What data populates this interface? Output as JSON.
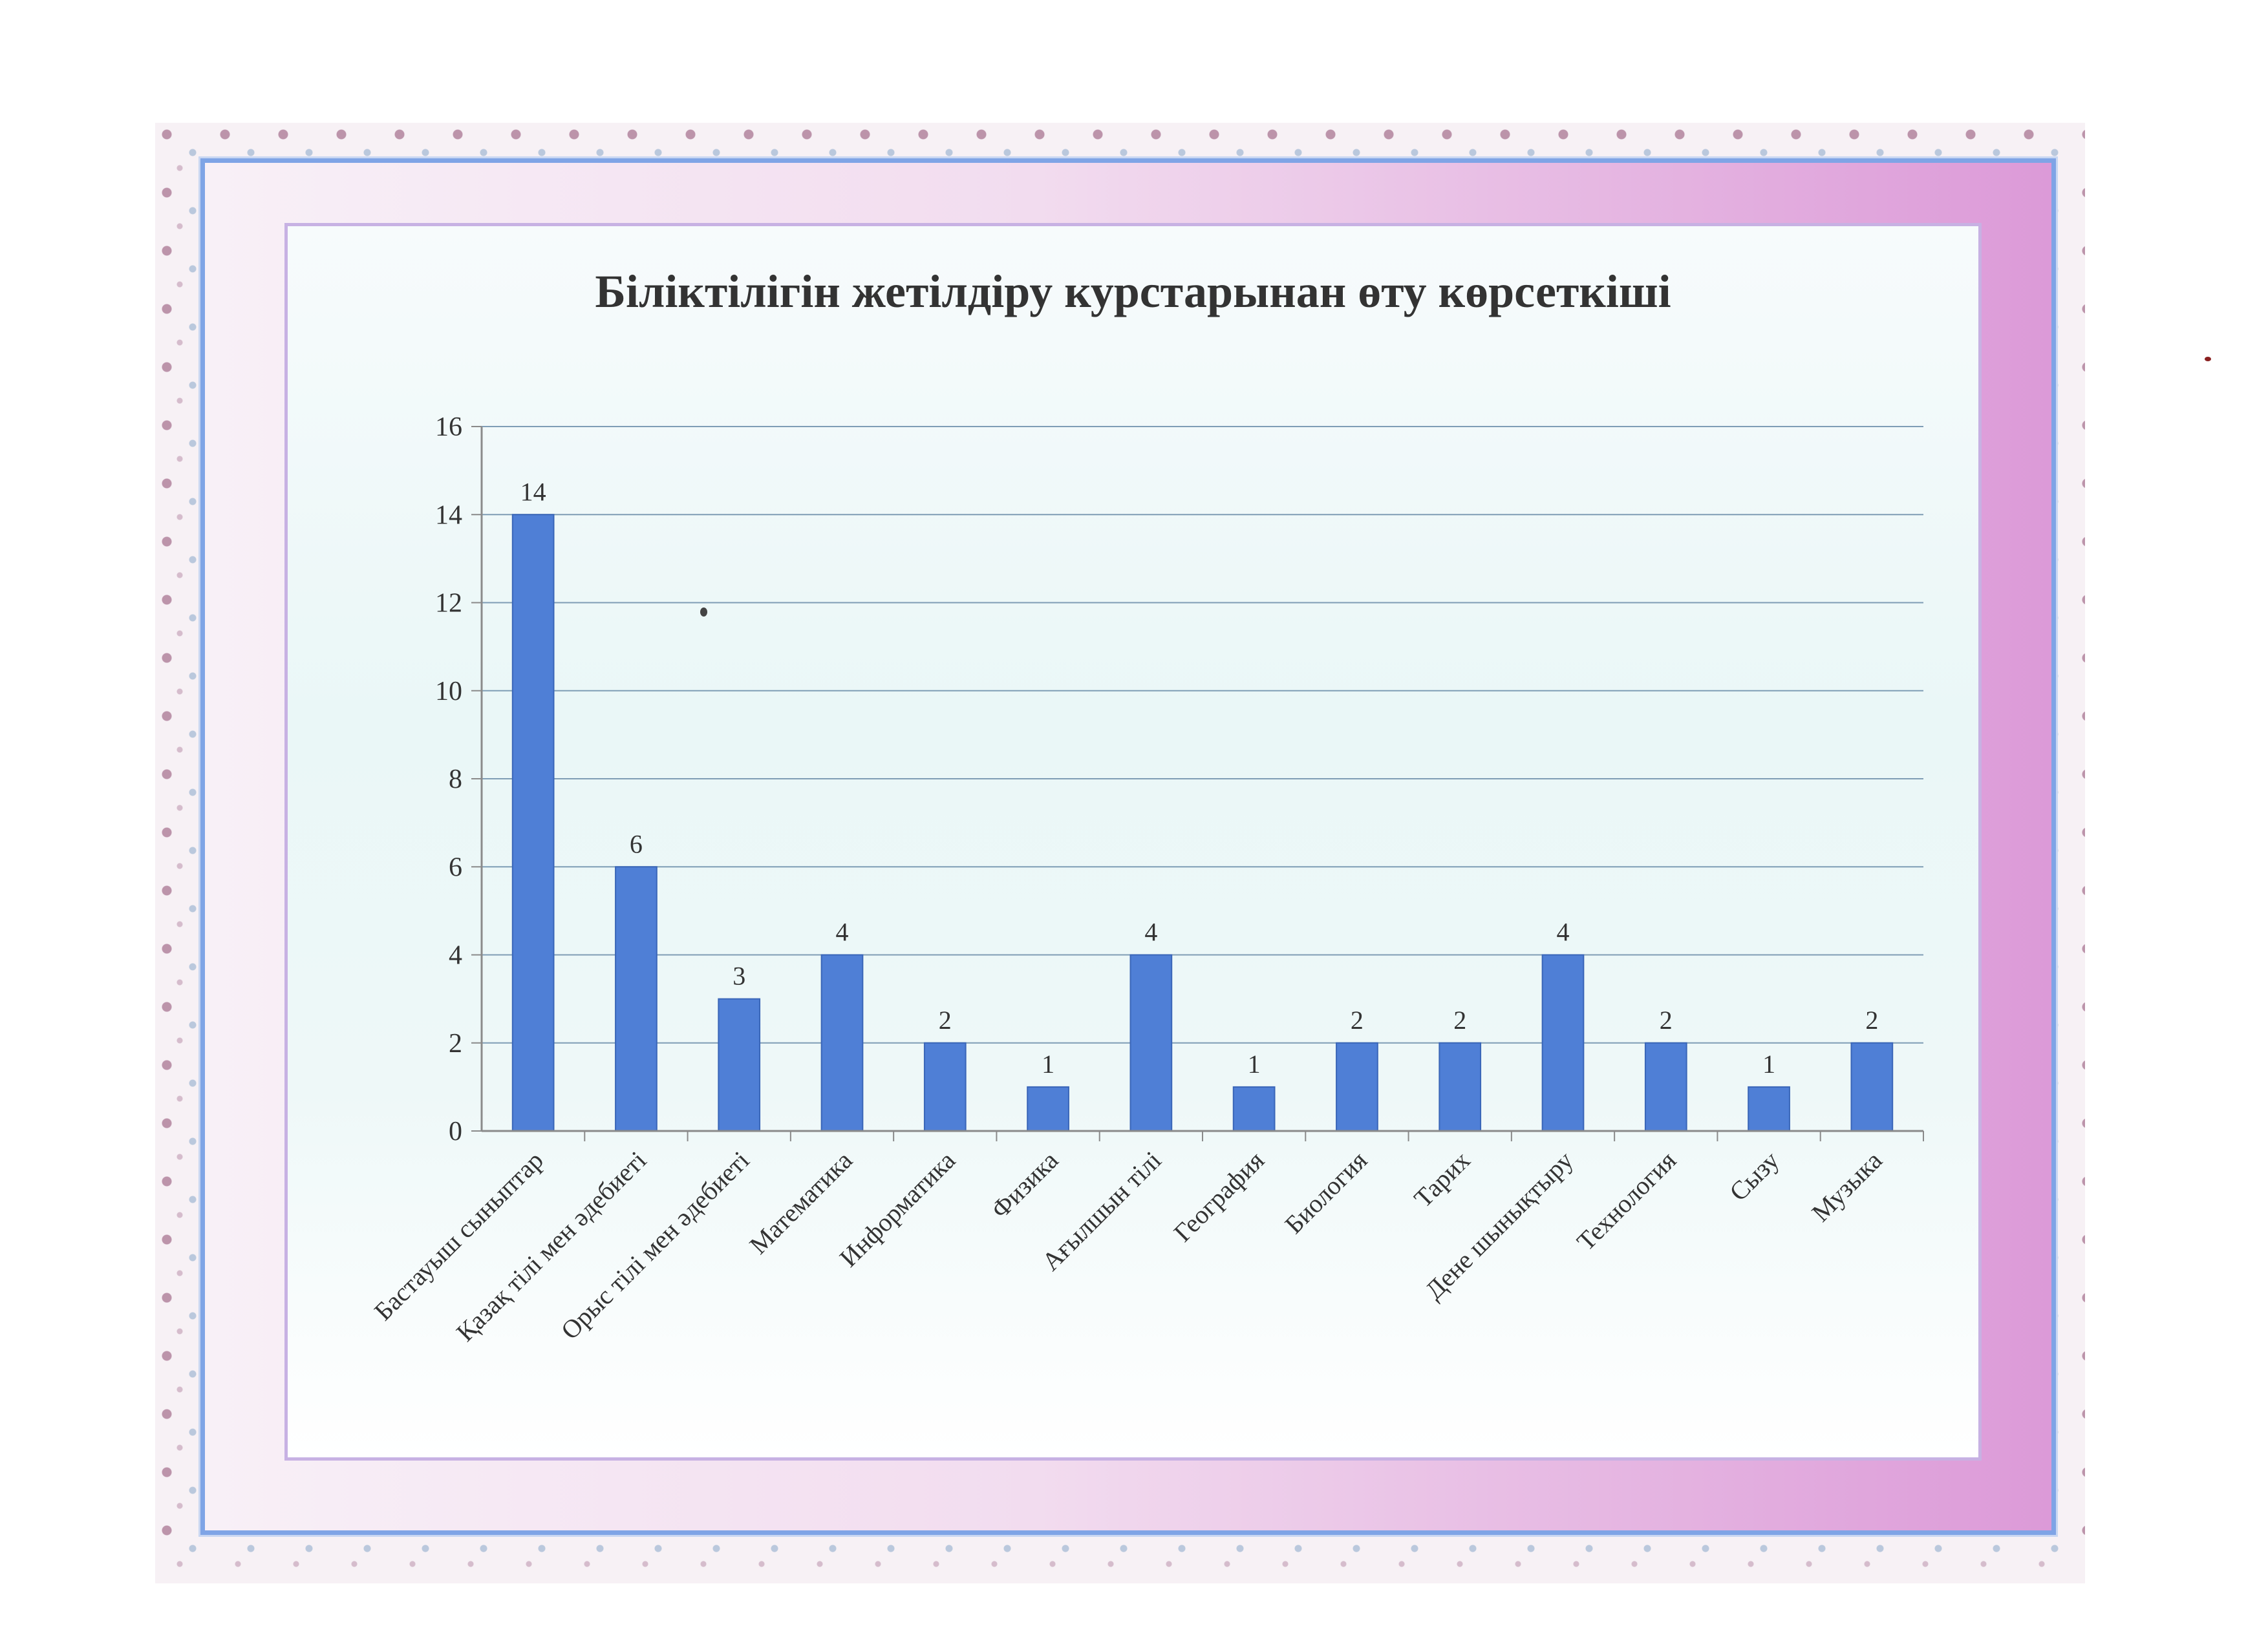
{
  "chart_data": {
    "type": "bar",
    "title": "Біліктілігін жетілдіру курстарынан өту көрсеткіші",
    "categories": [
      "Бастауыш сыныптар",
      "Қазақ тілі мен әдебиеті",
      "Орыс тілі мен  әдебиеті",
      "Математика",
      "Информатика",
      "Физика",
      "Ағылшын тілі",
      "География",
      "Биология",
      "Тарих",
      "Дене шынықтыру",
      "Технология",
      "Сызу",
      "Музыка"
    ],
    "values": [
      14,
      6,
      3,
      4,
      2,
      1,
      4,
      1,
      2,
      2,
      4,
      2,
      1,
      2
    ],
    "data_labels": [
      "14",
      "6",
      "3",
      "4",
      "2",
      "1",
      "4",
      "1",
      "2",
      "2",
      "4",
      "2",
      "1",
      "2"
    ],
    "yticks": [
      "0",
      "2",
      "4",
      "6",
      "8",
      "10",
      "12",
      "14",
      "16"
    ],
    "ylim": [
      0,
      16
    ],
    "xlabel": "",
    "ylabel": "",
    "grid": true,
    "legend": "none",
    "colors": {
      "bar": "#4f7fd6",
      "bar_edge": "#3a66b8",
      "grid": "#7f9db5",
      "axis": "#8a8a8a",
      "text": "#333333"
    }
  }
}
